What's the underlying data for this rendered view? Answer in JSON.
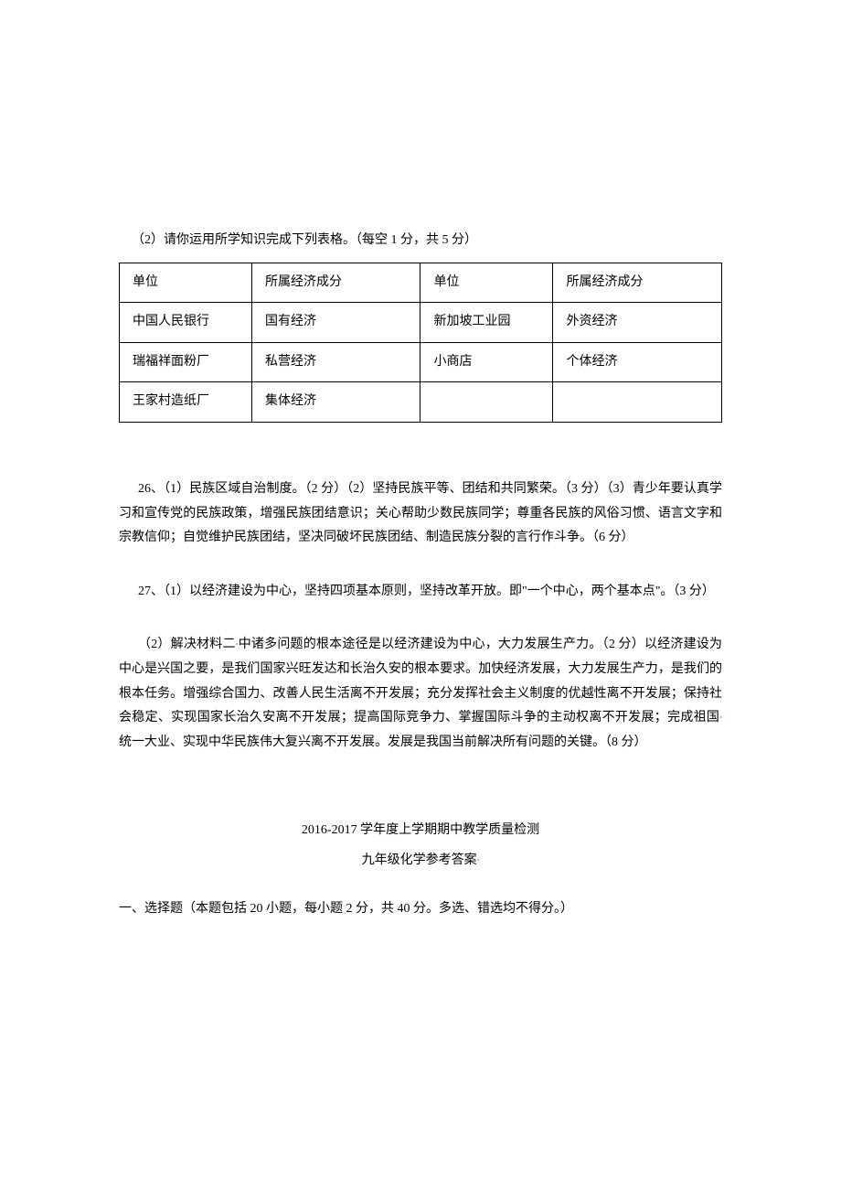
{
  "intro": "（2）请你运用所学知识完成下列表格。（每空 1 分，共 5 分）",
  "table": {
    "rows": [
      [
        "单位",
        "所属经济成分",
        "单位",
        "所属经济成分"
      ],
      [
        "中国人民银行",
        "国有经济",
        "新加坡工业园",
        "外资经济"
      ],
      [
        "瑞福祥面粉厂",
        "私营经济",
        "小商店",
        "个体经济"
      ],
      [
        "王家村造纸厂",
        "集体经济",
        "",
        ""
      ]
    ]
  },
  "q26": "26、（1）民族区域自治制度。（2 分）（2）坚持民族平等、团结和共同繁荣。（3 分）（3）青少年要认真学习和宣传党的民族政策，增强民族团结意识；关心帮助少数民族同学；尊重各民族的风俗习惯、语言文字和宗教信仰；自觉维护民族团结，坚决同破坏民族团结、制造民族分裂的言行作斗争。（6 分）",
  "q27_1": "27、（1）以经济建设为中心，坚持四项基本原则，坚持改革开放。即\"一个中心，两个基本点\"。（3 分）",
  "q27_2_a": "（2）解决材料二",
  "q27_2_b": "中诸多问题的根本途径是以经济建设为中心，大力发展生产力。（2 分）以经济建设为中心是兴国之要，是我们国家兴旺发达和长治久安的根本要求。加快经济发展，大力发展生产力，是我们的根本任务。增强综合国力、改善人民生活离不开发展；充分发挥社会主义制度的优越性离不开发展；保持社会稳定、实现国家长治久安离不开发展；提高国际竞争力、掌握国际斗争的主动权离不开发展；完成祖国",
  "q27_2_c": "统一大业、实现中华民族伟大复兴离不开发展。发展是我国当前解决所有问题的关键。（8 分）",
  "heading": "2016-2017 学年度上学期期中教学质量检测",
  "subheading": "九年级化学参考答案",
  "section": "一、选择题（本题包括 20 小题，每小题 2 分，共 40 分。多选、错选均不得分。）",
  "marker": "•",
  "colors": {
    "text": "#000000",
    "background": "#ffffff",
    "border": "#000000",
    "marker": "#d4a05c"
  }
}
